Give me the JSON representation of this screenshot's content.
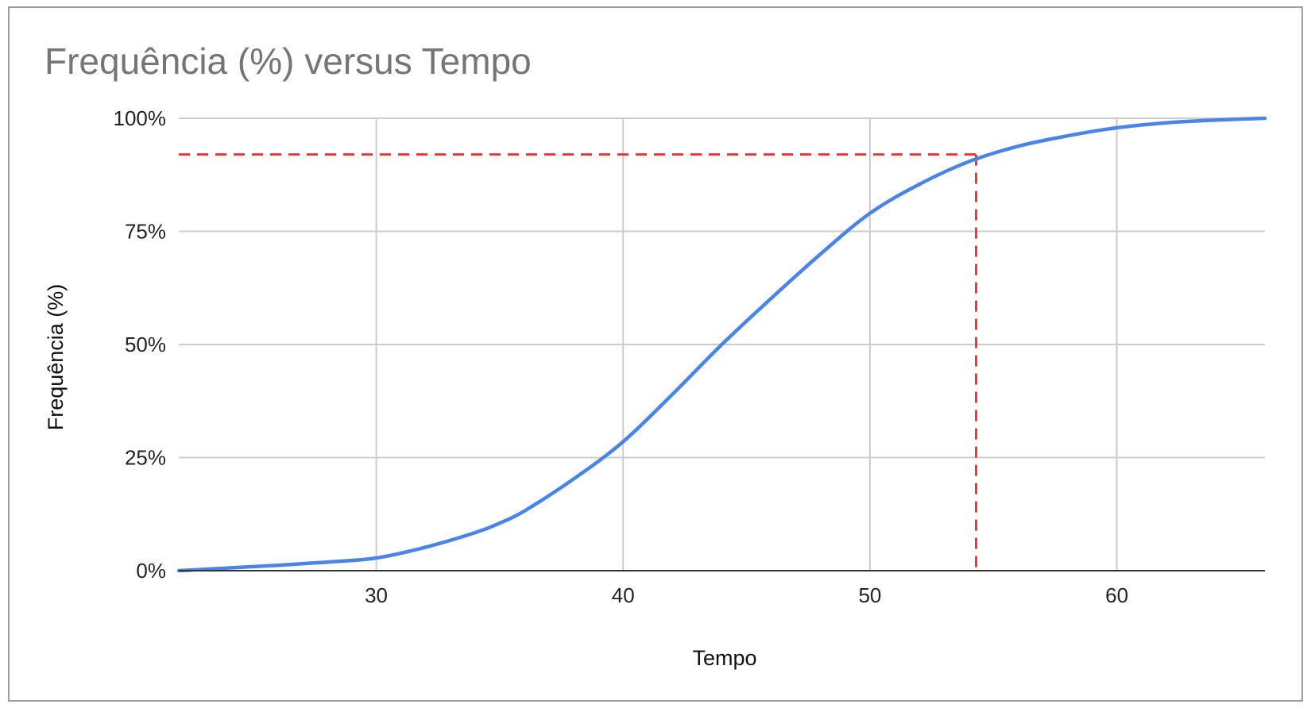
{
  "chart_data": {
    "type": "line",
    "title": "Frequência (%) versus Tempo",
    "xlabel": "Tempo",
    "ylabel": "Frequência (%)",
    "xlim": [
      22,
      66
    ],
    "ylim": [
      0,
      100
    ],
    "x_ticks": [
      30,
      40,
      50,
      60
    ],
    "y_ticks": [
      0,
      25,
      50,
      75,
      100
    ],
    "y_tick_labels": [
      "0%",
      "25%",
      "50%",
      "75%",
      "100%"
    ],
    "grid": true,
    "legend": "none",
    "series": [
      {
        "color": "#4a84e6",
        "x": [
          22,
          24,
          26,
          28,
          30,
          32,
          34,
          35,
          36,
          38,
          40,
          42,
          44,
          46,
          48,
          50,
          52,
          54,
          56,
          58,
          60,
          62,
          64,
          66
        ],
        "y": [
          0,
          0.6,
          1.2,
          1.9,
          2.8,
          5.2,
          8.4,
          10.5,
          13.2,
          20.3,
          28.5,
          39.0,
          50.0,
          60.2,
          70.0,
          79.0,
          85.4,
          90.4,
          93.8,
          96.1,
          97.9,
          99.0,
          99.6,
          100
        ]
      }
    ],
    "reference_lines": {
      "color": "#e53935",
      "style": "dashed",
      "y_level": 92,
      "x_level": 54.3
    }
  }
}
